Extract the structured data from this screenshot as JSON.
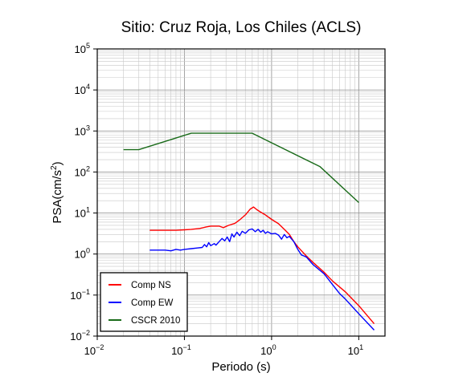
{
  "chart_data": {
    "type": "line",
    "title": "Sitio: Cruz Roja, Los Chiles (ACLS)",
    "xlabel": "Periodo (s)",
    "ylabel_main": "PSA(cm/s",
    "ylabel_sup": "2",
    "ylabel_close": ")",
    "x_scale": "log",
    "y_scale": "log",
    "xlim": [
      0.01,
      20
    ],
    "ylim": [
      0.01,
      100000
    ],
    "grid": true,
    "legend_position": "bottom-left",
    "x_ticks": [
      {
        "value": 0.01,
        "base": "10",
        "exp": "−2"
      },
      {
        "value": 0.1,
        "base": "10",
        "exp": "−1"
      },
      {
        "value": 1,
        "base": "10",
        "exp": "0"
      },
      {
        "value": 10,
        "base": "10",
        "exp": "1"
      }
    ],
    "y_ticks": [
      {
        "value": 0.01,
        "base": "10",
        "exp": "−2"
      },
      {
        "value": 0.1,
        "base": "10",
        "exp": "−1"
      },
      {
        "value": 1,
        "base": "10",
        "exp": "0"
      },
      {
        "value": 10,
        "base": "10",
        "exp": "1"
      },
      {
        "value": 100,
        "base": "10",
        "exp": "2"
      },
      {
        "value": 1000,
        "base": "10",
        "exp": "3"
      },
      {
        "value": 10000,
        "base": "10",
        "exp": "4"
      },
      {
        "value": 100000,
        "base": "10",
        "exp": "5"
      }
    ],
    "series": [
      {
        "name": "Comp NS",
        "color": "#ff0000",
        "points": [
          [
            0.04,
            3.8
          ],
          [
            0.06,
            3.8
          ],
          [
            0.08,
            3.8
          ],
          [
            0.1,
            3.9
          ],
          [
            0.12,
            4.0
          ],
          [
            0.15,
            4.2
          ],
          [
            0.18,
            4.6
          ],
          [
            0.2,
            4.8
          ],
          [
            0.25,
            4.8
          ],
          [
            0.28,
            4.4
          ],
          [
            0.32,
            5.0
          ],
          [
            0.38,
            5.6
          ],
          [
            0.43,
            6.8
          ],
          [
            0.5,
            9.0
          ],
          [
            0.57,
            12.5
          ],
          [
            0.62,
            14.0
          ],
          [
            0.68,
            12.0
          ],
          [
            0.75,
            10.5
          ],
          [
            0.85,
            9.0
          ],
          [
            1.0,
            7.0
          ],
          [
            1.2,
            5.5
          ],
          [
            1.4,
            4.0
          ],
          [
            1.6,
            3.0
          ],
          [
            1.8,
            2.0
          ],
          [
            2.0,
            1.5
          ],
          [
            2.5,
            0.9
          ],
          [
            3.0,
            0.62
          ],
          [
            4.0,
            0.36
          ],
          [
            5.0,
            0.22
          ],
          [
            7.0,
            0.12
          ],
          [
            10.0,
            0.055
          ],
          [
            15.0,
            0.02
          ]
        ]
      },
      {
        "name": "Comp EW",
        "color": "#0000ff",
        "points": [
          [
            0.04,
            1.25
          ],
          [
            0.05,
            1.25
          ],
          [
            0.06,
            1.25
          ],
          [
            0.07,
            1.2
          ],
          [
            0.08,
            1.3
          ],
          [
            0.09,
            1.25
          ],
          [
            0.1,
            1.3
          ],
          [
            0.12,
            1.35
          ],
          [
            0.14,
            1.4
          ],
          [
            0.16,
            1.45
          ],
          [
            0.17,
            1.7
          ],
          [
            0.18,
            1.5
          ],
          [
            0.19,
            1.9
          ],
          [
            0.2,
            1.6
          ],
          [
            0.22,
            1.8
          ],
          [
            0.23,
            1.65
          ],
          [
            0.25,
            2.0
          ],
          [
            0.27,
            2.4
          ],
          [
            0.29,
            2.1
          ],
          [
            0.31,
            2.6
          ],
          [
            0.33,
            2.0
          ],
          [
            0.35,
            3.1
          ],
          [
            0.37,
            2.6
          ],
          [
            0.4,
            3.4
          ],
          [
            0.43,
            2.8
          ],
          [
            0.46,
            3.6
          ],
          [
            0.5,
            3.2
          ],
          [
            0.55,
            3.9
          ],
          [
            0.6,
            4.1
          ],
          [
            0.65,
            3.5
          ],
          [
            0.7,
            4.0
          ],
          [
            0.75,
            3.4
          ],
          [
            0.8,
            3.8
          ],
          [
            0.85,
            3.2
          ],
          [
            0.9,
            3.5
          ],
          [
            1.0,
            3.1
          ],
          [
            1.1,
            3.2
          ],
          [
            1.2,
            2.9
          ],
          [
            1.3,
            2.3
          ],
          [
            1.4,
            3.0
          ],
          [
            1.5,
            2.5
          ],
          [
            1.6,
            2.7
          ],
          [
            1.8,
            2.0
          ],
          [
            2.0,
            1.3
          ],
          [
            2.2,
            0.95
          ],
          [
            2.5,
            0.85
          ],
          [
            3.0,
            0.55
          ],
          [
            4.0,
            0.33
          ],
          [
            5.0,
            0.18
          ],
          [
            6.0,
            0.11
          ],
          [
            7.0,
            0.08
          ],
          [
            10.0,
            0.035
          ],
          [
            15.0,
            0.014
          ]
        ]
      },
      {
        "name": "CSCR 2010",
        "color": "#1a6b1a",
        "points": [
          [
            0.02,
            350
          ],
          [
            0.03,
            350
          ],
          [
            0.12,
            880
          ],
          [
            0.6,
            880
          ],
          [
            3.6,
            135
          ],
          [
            10.0,
            18
          ]
        ]
      }
    ]
  }
}
